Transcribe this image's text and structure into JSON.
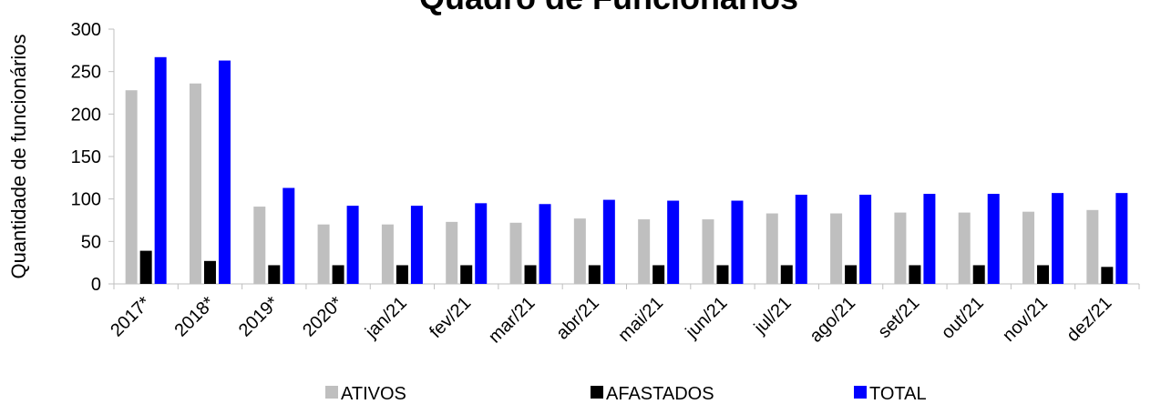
{
  "chart_data": {
    "type": "bar",
    "title": "Quadro de Funcionários",
    "y_label": "Quantidade de funcionários",
    "categories": [
      "2017*",
      "2018*",
      "2019*",
      "2020*",
      "jan/21",
      "fev/21",
      "mar/21",
      "abr/21",
      "mai/21",
      "jun/21",
      "jul/21",
      "ago/21",
      "set/21",
      "out/21",
      "nov/21",
      "dez/21"
    ],
    "series": [
      {
        "name": "ATIVOS",
        "color": "#bfbfbf",
        "values": [
          228,
          236,
          91,
          70,
          70,
          73,
          72,
          77,
          76,
          76,
          83,
          83,
          84,
          84,
          85,
          87
        ]
      },
      {
        "name": "AFASTADOS",
        "color": "#000000",
        "values": [
          39,
          27,
          22,
          22,
          22,
          22,
          22,
          22,
          22,
          22,
          22,
          22,
          22,
          22,
          22,
          20
        ]
      },
      {
        "name": "TOTAL",
        "color": "#0000ff",
        "values": [
          267,
          263,
          113,
          92,
          92,
          95,
          94,
          99,
          98,
          98,
          105,
          105,
          106,
          106,
          107,
          107
        ]
      }
    ],
    "ylim": [
      0,
      300
    ],
    "yticks": [
      0,
      50,
      100,
      150,
      200,
      250,
      300
    ],
    "legend": "bottom"
  }
}
